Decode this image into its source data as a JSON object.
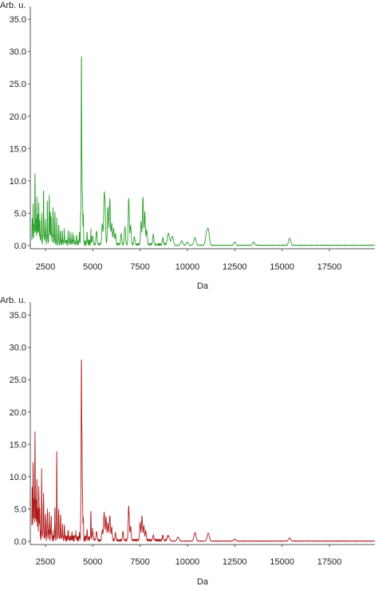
{
  "chart_data": [
    {
      "type": "line",
      "ylabel": "Arb. u.",
      "xlabel": "Da",
      "color": "#2ca02c",
      "xlim": [
        1700,
        19900
      ],
      "ylim": [
        -0.5,
        36.5
      ],
      "xticks": [
        2500,
        5000,
        7500,
        10000,
        12500,
        15000,
        17500
      ],
      "yticks": [
        0.0,
        5.0,
        10.0,
        15.0,
        20.0,
        25.0,
        30.0,
        35.0
      ],
      "tick_decimals": 1,
      "grid": false,
      "peaks": [
        [
          1800,
          3.2
        ],
        [
          1850,
          5.1
        ],
        [
          1900,
          2.4
        ],
        [
          1950,
          10.1
        ],
        [
          2000,
          4.0
        ],
        [
          2050,
          6.6
        ],
        [
          2100,
          3.1
        ],
        [
          2150,
          5.0
        ],
        [
          2200,
          2.7
        ],
        [
          2300,
          4.4
        ],
        [
          2400,
          7.3
        ],
        [
          2500,
          3.0
        ],
        [
          2600,
          5.6
        ],
        [
          2700,
          6.3
        ],
        [
          2750,
          4.8
        ],
        [
          2800,
          2.9
        ],
        [
          2900,
          5.2
        ],
        [
          3000,
          4.4
        ],
        [
          3100,
          3.5
        ],
        [
          3200,
          2.8
        ],
        [
          3300,
          2.0
        ],
        [
          3400,
          1.5
        ],
        [
          3500,
          1.8
        ],
        [
          3700,
          1.5
        ],
        [
          3800,
          1.6
        ],
        [
          3900,
          1.4
        ],
        [
          4000,
          1.3
        ],
        [
          4150,
          1.2
        ],
        [
          4300,
          1.5
        ],
        [
          4360,
          4.1
        ],
        [
          4400,
          29.7
        ],
        [
          4430,
          9.2
        ],
        [
          4460,
          6.5
        ],
        [
          4500,
          4.1
        ],
        [
          4700,
          1.6
        ],
        [
          4900,
          1.8
        ],
        [
          5000,
          1.2
        ],
        [
          5200,
          2.0
        ],
        [
          5500,
          3.2
        ],
        [
          5600,
          6.6
        ],
        [
          5650,
          5.1
        ],
        [
          5800,
          5.7
        ],
        [
          5900,
          7.0
        ],
        [
          6000,
          3.2
        ],
        [
          6100,
          2.4
        ],
        [
          6200,
          1.6
        ],
        [
          6500,
          1.6
        ],
        [
          6700,
          2.7
        ],
        [
          6900,
          7.1
        ],
        [
          7000,
          3.0
        ],
        [
          7200,
          1.2
        ],
        [
          7550,
          3.4
        ],
        [
          7650,
          7.4
        ],
        [
          7750,
          5.0
        ],
        [
          7850,
          2.3
        ],
        [
          8200,
          1.5
        ],
        [
          8700,
          1.0
        ],
        [
          9000,
          1.8
        ],
        [
          9200,
          1.4
        ],
        [
          9700,
          0.7
        ],
        [
          10000,
          0.5
        ],
        [
          10400,
          1.2
        ],
        [
          11000,
          1.5
        ],
        [
          11100,
          2.3
        ],
        [
          12500,
          0.5
        ],
        [
          13500,
          0.5
        ],
        [
          15400,
          1.1
        ]
      ]
    },
    {
      "type": "line",
      "ylabel": "Arb. u.",
      "xlabel": "Da",
      "color": "#b01c1c",
      "xlim": [
        1700,
        19900
      ],
      "ylim": [
        -0.5,
        36.5
      ],
      "xticks": [
        2500,
        5000,
        7500,
        10000,
        12500,
        15000,
        17500
      ],
      "yticks": [
        0.0,
        5.0,
        10.0,
        15.0,
        20.0,
        25.0,
        30.0,
        35.0
      ],
      "tick_decimals": 1,
      "grid": false,
      "peaks": [
        [
          1800,
          7.8
        ],
        [
          1850,
          11.6
        ],
        [
          1900,
          5.5
        ],
        [
          1950,
          15.4
        ],
        [
          2000,
          6.1
        ],
        [
          2050,
          9.1
        ],
        [
          2100,
          4.5
        ],
        [
          2150,
          7.9
        ],
        [
          2200,
          4.0
        ],
        [
          2300,
          9.8
        ],
        [
          2400,
          6.0
        ],
        [
          2500,
          3.4
        ],
        [
          2600,
          4.1
        ],
        [
          2700,
          2.7
        ],
        [
          2800,
          3.0
        ],
        [
          3000,
          4.5
        ],
        [
          3100,
          13.4
        ],
        [
          3200,
          5.0
        ],
        [
          3300,
          3.9
        ],
        [
          3400,
          2.4
        ],
        [
          3500,
          2.0
        ],
        [
          3700,
          1.5
        ],
        [
          3900,
          1.0
        ],
        [
          4100,
          0.8
        ],
        [
          4300,
          1.0
        ],
        [
          4370,
          4.6
        ],
        [
          4400,
          28.0
        ],
        [
          4430,
          14.4
        ],
        [
          4460,
          6.8
        ],
        [
          4500,
          3.5
        ],
        [
          4700,
          1.7
        ],
        [
          4900,
          4.5
        ],
        [
          5000,
          1.4
        ],
        [
          5200,
          1.4
        ],
        [
          5500,
          1.6
        ],
        [
          5600,
          4.4
        ],
        [
          5700,
          3.6
        ],
        [
          5800,
          2.6
        ],
        [
          5900,
          3.8
        ],
        [
          6000,
          2.0
        ],
        [
          6200,
          1.1
        ],
        [
          6600,
          1.3
        ],
        [
          6900,
          5.2
        ],
        [
          7000,
          2.0
        ],
        [
          7500,
          2.7
        ],
        [
          7600,
          3.7
        ],
        [
          7700,
          2.2
        ],
        [
          7800,
          1.5
        ],
        [
          8200,
          0.8
        ],
        [
          8700,
          0.7
        ],
        [
          9000,
          0.8
        ],
        [
          9500,
          0.6
        ],
        [
          10400,
          1.3
        ],
        [
          11100,
          1.2
        ],
        [
          12500,
          0.3
        ],
        [
          15400,
          0.5
        ]
      ]
    }
  ]
}
